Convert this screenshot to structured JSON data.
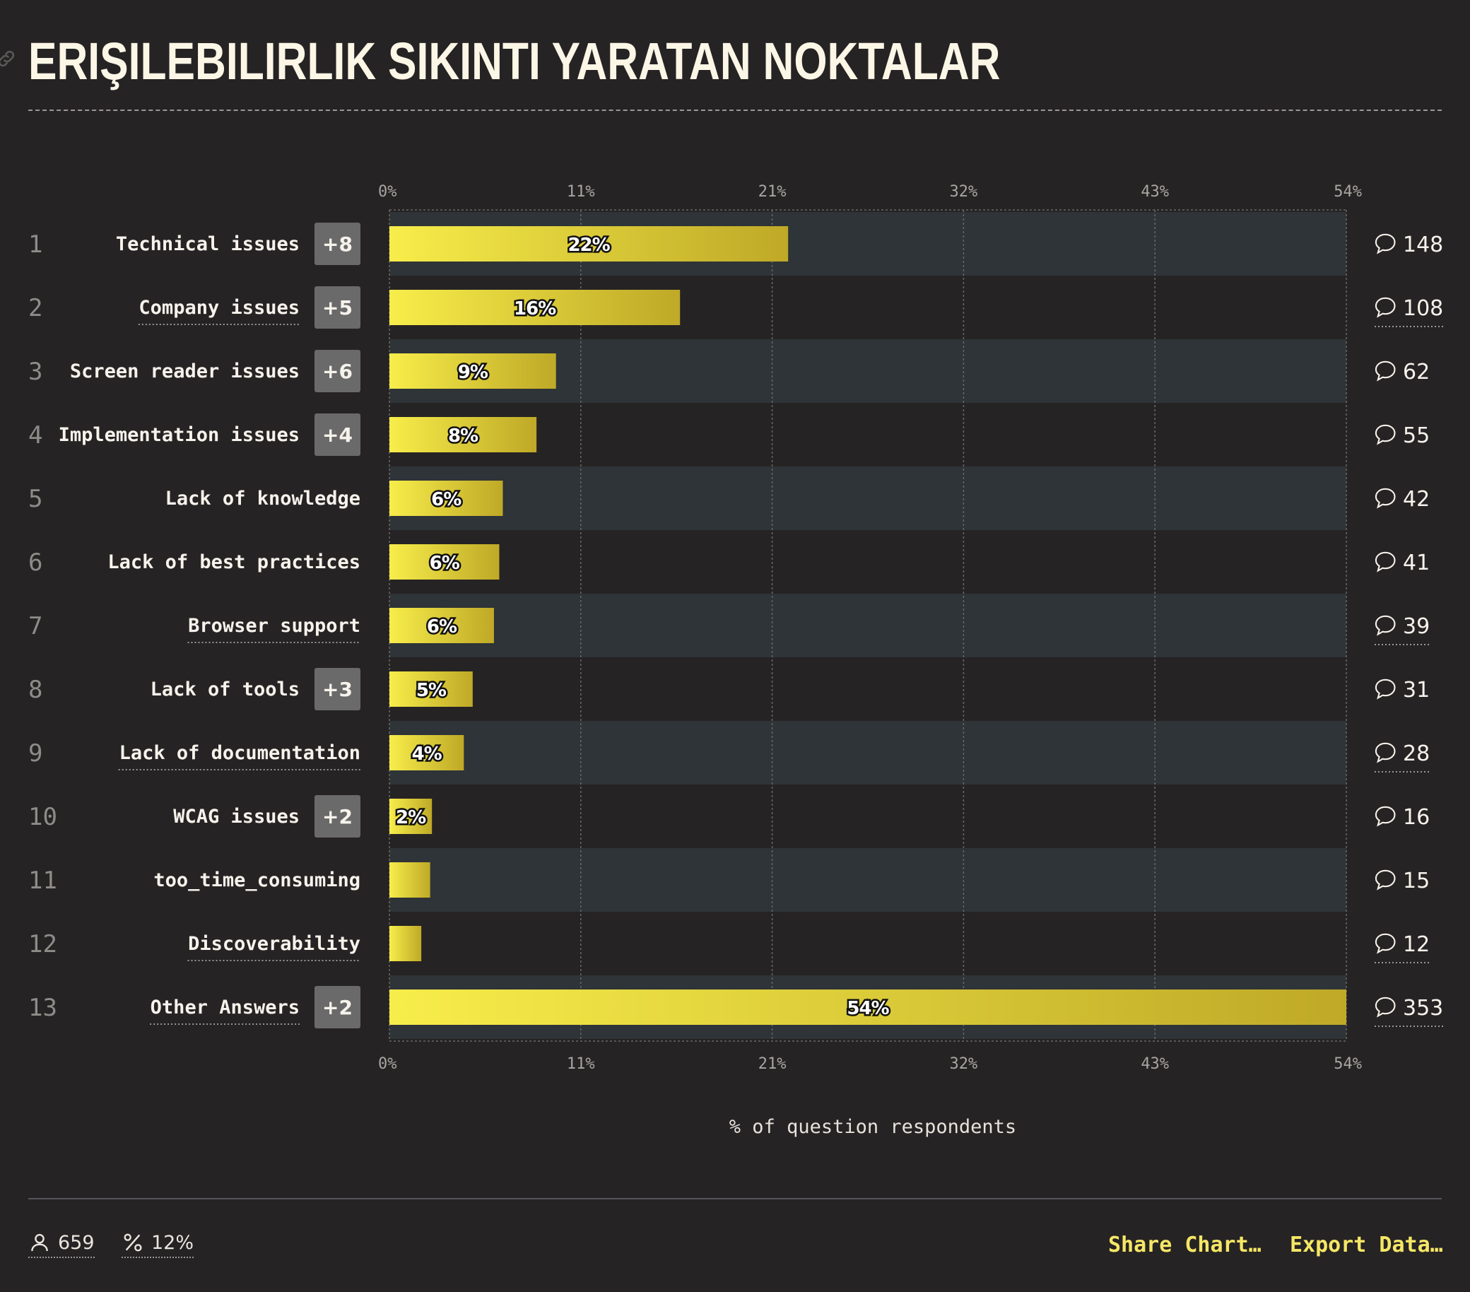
{
  "title": "ERIŞILEBILIRLIK SIKINTI YARATAN NOKTALAR",
  "chart_data": {
    "type": "bar",
    "orientation": "horizontal",
    "xlim": [
      0,
      54
    ],
    "ticks": [
      "0%",
      "11%",
      "21%",
      "32%",
      "43%",
      "54%"
    ],
    "tick_values": [
      0,
      10.8,
      21.6,
      32.4,
      43.2,
      54
    ],
    "xlabel": "% of question respondents",
    "grid": true,
    "bar_color_start": "#f7ed4a",
    "bar_color_end": "#bfa927",
    "rows": [
      {
        "rank": "1",
        "label": "Technical issues",
        "delta": "+8",
        "value": 22.5,
        "value_label": "22%",
        "count": "148",
        "underlined": false
      },
      {
        "rank": "2",
        "label": "Company issues",
        "delta": "+5",
        "value": 16.4,
        "value_label": "16%",
        "count": "108",
        "underlined": true
      },
      {
        "rank": "3",
        "label": "Screen reader issues",
        "delta": "+6",
        "value": 9.4,
        "value_label": "9%",
        "count": "62",
        "underlined": false
      },
      {
        "rank": "4",
        "label": "Implementation issues",
        "delta": "+4",
        "value": 8.3,
        "value_label": "8%",
        "count": "55",
        "underlined": false
      },
      {
        "rank": "5",
        "label": "Lack of knowledge",
        "delta": "",
        "value": 6.4,
        "value_label": "6%",
        "count": "42",
        "underlined": false
      },
      {
        "rank": "6",
        "label": "Lack of best practices",
        "delta": "",
        "value": 6.2,
        "value_label": "6%",
        "count": "41",
        "underlined": false
      },
      {
        "rank": "7",
        "label": "Browser support",
        "delta": "",
        "value": 5.9,
        "value_label": "6%",
        "count": "39",
        "underlined": true
      },
      {
        "rank": "8",
        "label": "Lack of tools",
        "delta": "+3",
        "value": 4.7,
        "value_label": "5%",
        "count": "31",
        "underlined": false
      },
      {
        "rank": "9",
        "label": "Lack of documentation",
        "delta": "",
        "value": 4.2,
        "value_label": "4%",
        "count": "28",
        "underlined": true
      },
      {
        "rank": "10",
        "label": "WCAG issues",
        "delta": "+2",
        "value": 2.4,
        "value_label": "2%",
        "count": "16",
        "underlined": false
      },
      {
        "rank": "11",
        "label": "too_time_consuming",
        "delta": "",
        "value": 2.3,
        "value_label": "",
        "count": "15",
        "underlined": false
      },
      {
        "rank": "12",
        "label": "Discoverability",
        "delta": "",
        "value": 1.8,
        "value_label": "",
        "count": "12",
        "underlined": true
      },
      {
        "rank": "13",
        "label": "Other Answers",
        "delta": "+2",
        "value": 54,
        "value_label": "54%",
        "count": "353",
        "underlined": true
      }
    ]
  },
  "footer": {
    "respondents": "659",
    "percent": "12%",
    "share_label": "Share Chart…",
    "export_label": "Export Data…"
  }
}
